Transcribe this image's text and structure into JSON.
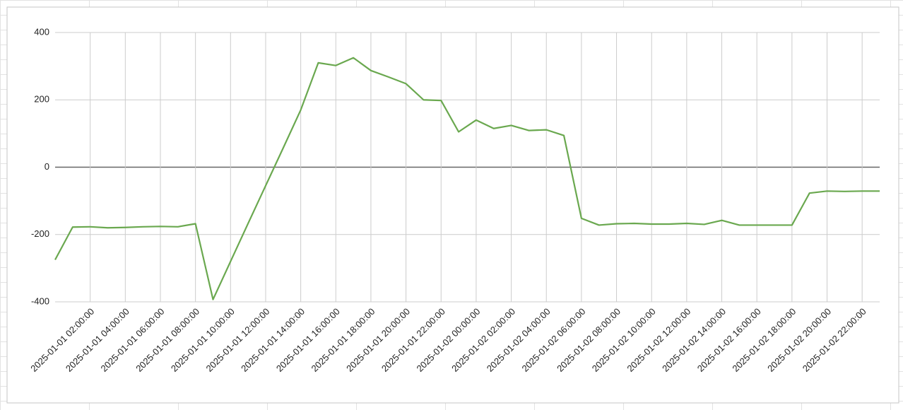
{
  "chart_data": {
    "type": "line",
    "x": [
      "2025-01-01 00:00:00",
      "2025-01-01 01:00:00",
      "2025-01-01 02:00:00",
      "2025-01-01 03:00:00",
      "2025-01-01 04:00:00",
      "2025-01-01 05:00:00",
      "2025-01-01 06:00:00",
      "2025-01-01 07:00:00",
      "2025-01-01 08:00:00",
      "2025-01-01 09:00:00",
      "2025-01-01 10:00:00",
      "2025-01-01 11:00:00",
      "2025-01-01 12:00:00",
      "2025-01-01 13:00:00",
      "2025-01-01 14:00:00",
      "2025-01-01 15:00:00",
      "2025-01-01 16:00:00",
      "2025-01-01 17:00:00",
      "2025-01-01 18:00:00",
      "2025-01-01 19:00:00",
      "2025-01-01 20:00:00",
      "2025-01-01 21:00:00",
      "2025-01-01 22:00:00",
      "2025-01-01 23:00:00",
      "2025-01-02 00:00:00",
      "2025-01-02 01:00:00",
      "2025-01-02 02:00:00",
      "2025-01-02 03:00:00",
      "2025-01-02 04:00:00",
      "2025-01-02 05:00:00",
      "2025-01-02 06:00:00",
      "2025-01-02 07:00:00",
      "2025-01-02 08:00:00",
      "2025-01-02 09:00:00",
      "2025-01-02 10:00:00",
      "2025-01-02 11:00:00",
      "2025-01-02 12:00:00",
      "2025-01-02 13:00:00",
      "2025-01-02 14:00:00",
      "2025-01-02 15:00:00",
      "2025-01-02 16:00:00",
      "2025-01-02 17:00:00",
      "2025-01-02 18:00:00",
      "2025-01-02 19:00:00",
      "2025-01-02 20:00:00",
      "2025-01-02 21:00:00",
      "2025-01-02 22:00:00",
      "2025-01-02 23:00:00"
    ],
    "series": [
      {
        "color": "#6aa84f",
        "values": [
          -275,
          -178,
          -177,
          -180,
          -179,
          -177,
          -176,
          -177,
          -168,
          -393,
          -280,
          -167,
          -55,
          57,
          170,
          310,
          302,
          325,
          287,
          268,
          248,
          200,
          198,
          105,
          140,
          115,
          124,
          109,
          111,
          94,
          -152,
          -172,
          -168,
          -167,
          -169,
          -169,
          -167,
          -170,
          -158,
          -172,
          -172,
          -172,
          -172,
          -77,
          -71,
          -72,
          -71,
          -71
        ]
      }
    ],
    "xticks": [
      "2025-01-01 02:00:00",
      "2025-01-01 04:00:00",
      "2025-01-01 06:00:00",
      "2025-01-01 08:00:00",
      "2025-01-01 10:00:00",
      "2025-01-01 12:00:00",
      "2025-01-01 14:00:00",
      "2025-01-01 16:00:00",
      "2025-01-01 18:00:00",
      "2025-01-01 20:00:00",
      "2025-01-01 22:00:00",
      "2025-01-02 00:00:00",
      "2025-01-02 02:00:00",
      "2025-01-02 04:00:00",
      "2025-01-02 06:00:00",
      "2025-01-02 08:00:00",
      "2025-01-02 10:00:00",
      "2025-01-02 12:00:00",
      "2025-01-02 14:00:00",
      "2025-01-02 16:00:00",
      "2025-01-02 18:00:00",
      "2025-01-02 20:00:00",
      "2025-01-02 22:00:00"
    ],
    "ylim": [
      -400,
      400
    ],
    "yticks": [
      -400,
      -200,
      0,
      200,
      400
    ],
    "grid": true
  }
}
